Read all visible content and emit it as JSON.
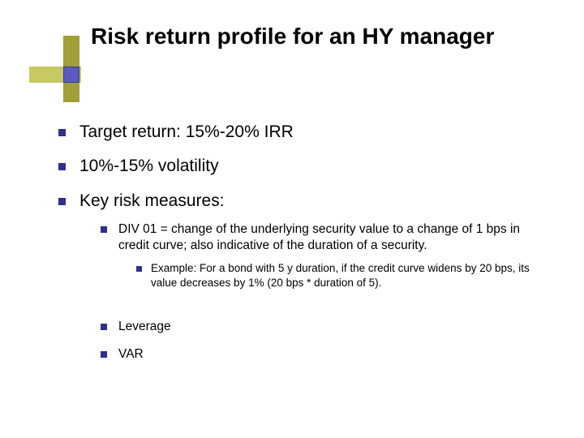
{
  "colors": {
    "background": "#ffffff",
    "text": "#000000",
    "bullet": "#2f2f8f",
    "corner_bar_h": "#c8c864",
    "corner_bar_v": "#a0a038",
    "corner_square_fill": "#5a5ac0",
    "corner_square_border": "#3a3a90"
  },
  "typography": {
    "title_fontsize_pt": 21,
    "lvl1_fontsize_pt": 16,
    "lvl2_fontsize_pt": 12,
    "lvl3_fontsize_pt": 10,
    "font_family": "Verdana"
  },
  "title": "Risk return profile for an HY manager",
  "bullets": {
    "b1": "Target return: 15%-20% IRR",
    "b2": "10%-15% volatility",
    "b3": "Key risk measures:",
    "b3_sub1": "DIV 01 = change of the underlying security value to a change of 1 bps in credit curve; also indicative of the duration of a security.",
    "b3_sub1_ex": "Example: For a bond with 5 y duration, if the credit curve widens by 20 bps, its value decreases by 1% (20 bps * duration of 5).",
    "b3_sub2": "Leverage",
    "b3_sub3": "VAR"
  }
}
